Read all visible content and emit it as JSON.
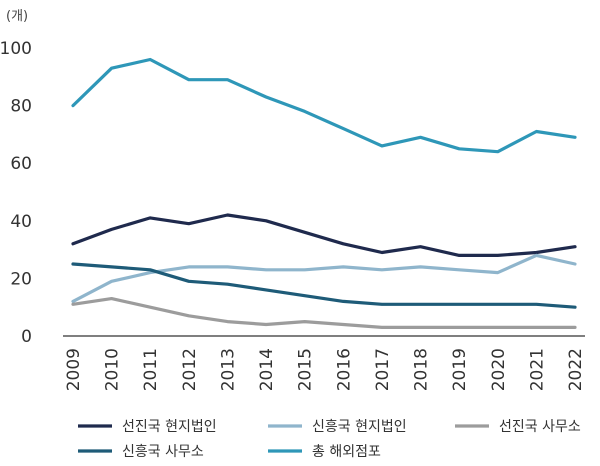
{
  "chart_data": {
    "type": "line",
    "unit_label": "(개)",
    "x": [
      "2009",
      "2010",
      "2011",
      "2012",
      "2013",
      "2014",
      "2015",
      "2016",
      "2017",
      "2018",
      "2019",
      "2020",
      "2021",
      "2022"
    ],
    "ylim": [
      0,
      100
    ],
    "yticks": [
      0,
      20,
      40,
      60,
      80,
      100
    ],
    "series": [
      {
        "name": "선진국 현지법인",
        "color": "#1f2a4d",
        "values": [
          32,
          37,
          41,
          39,
          42,
          40,
          36,
          32,
          29,
          31,
          28,
          28,
          29,
          31
        ]
      },
      {
        "name": "신흥국 현지법인",
        "color": "#8fb5cc",
        "values": [
          12,
          19,
          22,
          24,
          24,
          23,
          23,
          24,
          23,
          24,
          23,
          22,
          28,
          25
        ]
      },
      {
        "name": "선진국 사무소",
        "color": "#9c9c9c",
        "values": [
          11,
          13,
          10,
          7,
          5,
          4,
          5,
          4,
          3,
          3,
          3,
          3,
          3,
          3
        ]
      },
      {
        "name": "신흥국 사무소",
        "color": "#1e5b78",
        "values": [
          25,
          24,
          23,
          19,
          18,
          16,
          14,
          12,
          11,
          11,
          11,
          11,
          11,
          10
        ]
      },
      {
        "name": "총 해외점포",
        "color": "#2e97b8",
        "values": [
          80,
          93,
          96,
          89,
          89,
          83,
          78,
          72,
          66,
          69,
          65,
          64,
          71,
          69
        ]
      }
    ]
  }
}
